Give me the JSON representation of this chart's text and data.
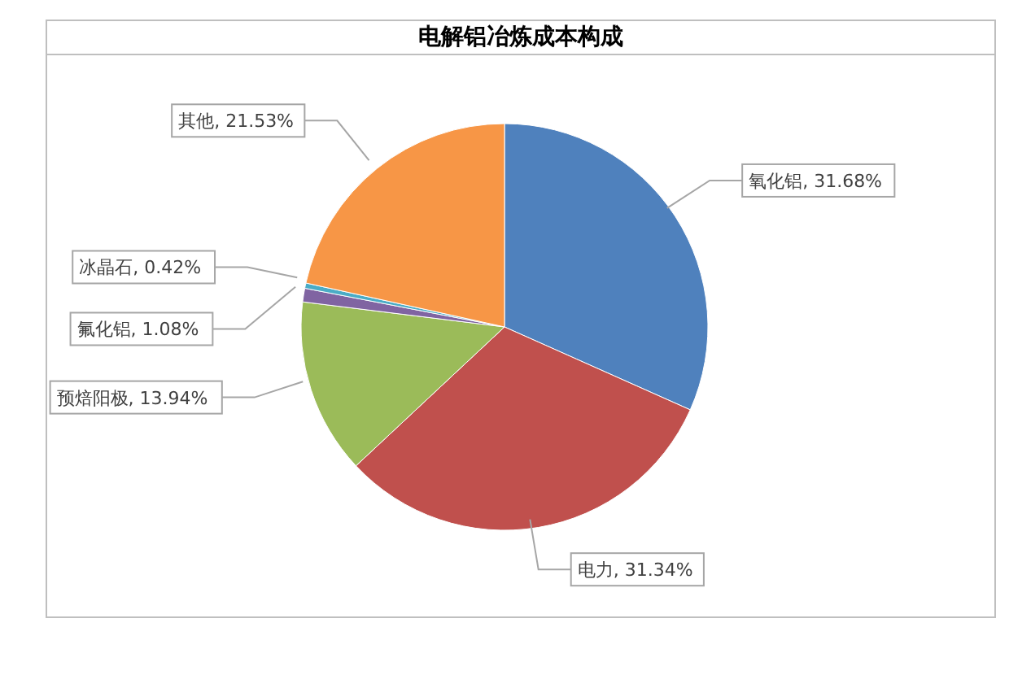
{
  "chart_data": {
    "type": "pie",
    "title": "电解铝冶炼成本构成",
    "categories": [
      "氧化铝",
      "电力",
      "预焙阳极",
      "氟化铝",
      "冰晶石",
      "其他"
    ],
    "values": [
      31.68,
      31.34,
      13.94,
      1.08,
      0.42,
      21.53
    ],
    "colors": [
      "#4f81bd",
      "#c0504d",
      "#9bbb59",
      "#8064a2",
      "#4bacc6",
      "#f79646"
    ],
    "value_labels": [
      "31.68%",
      "31.34%",
      "13.94%",
      "1.08%",
      "0.42%",
      "21.53%"
    ],
    "legend": false
  }
}
